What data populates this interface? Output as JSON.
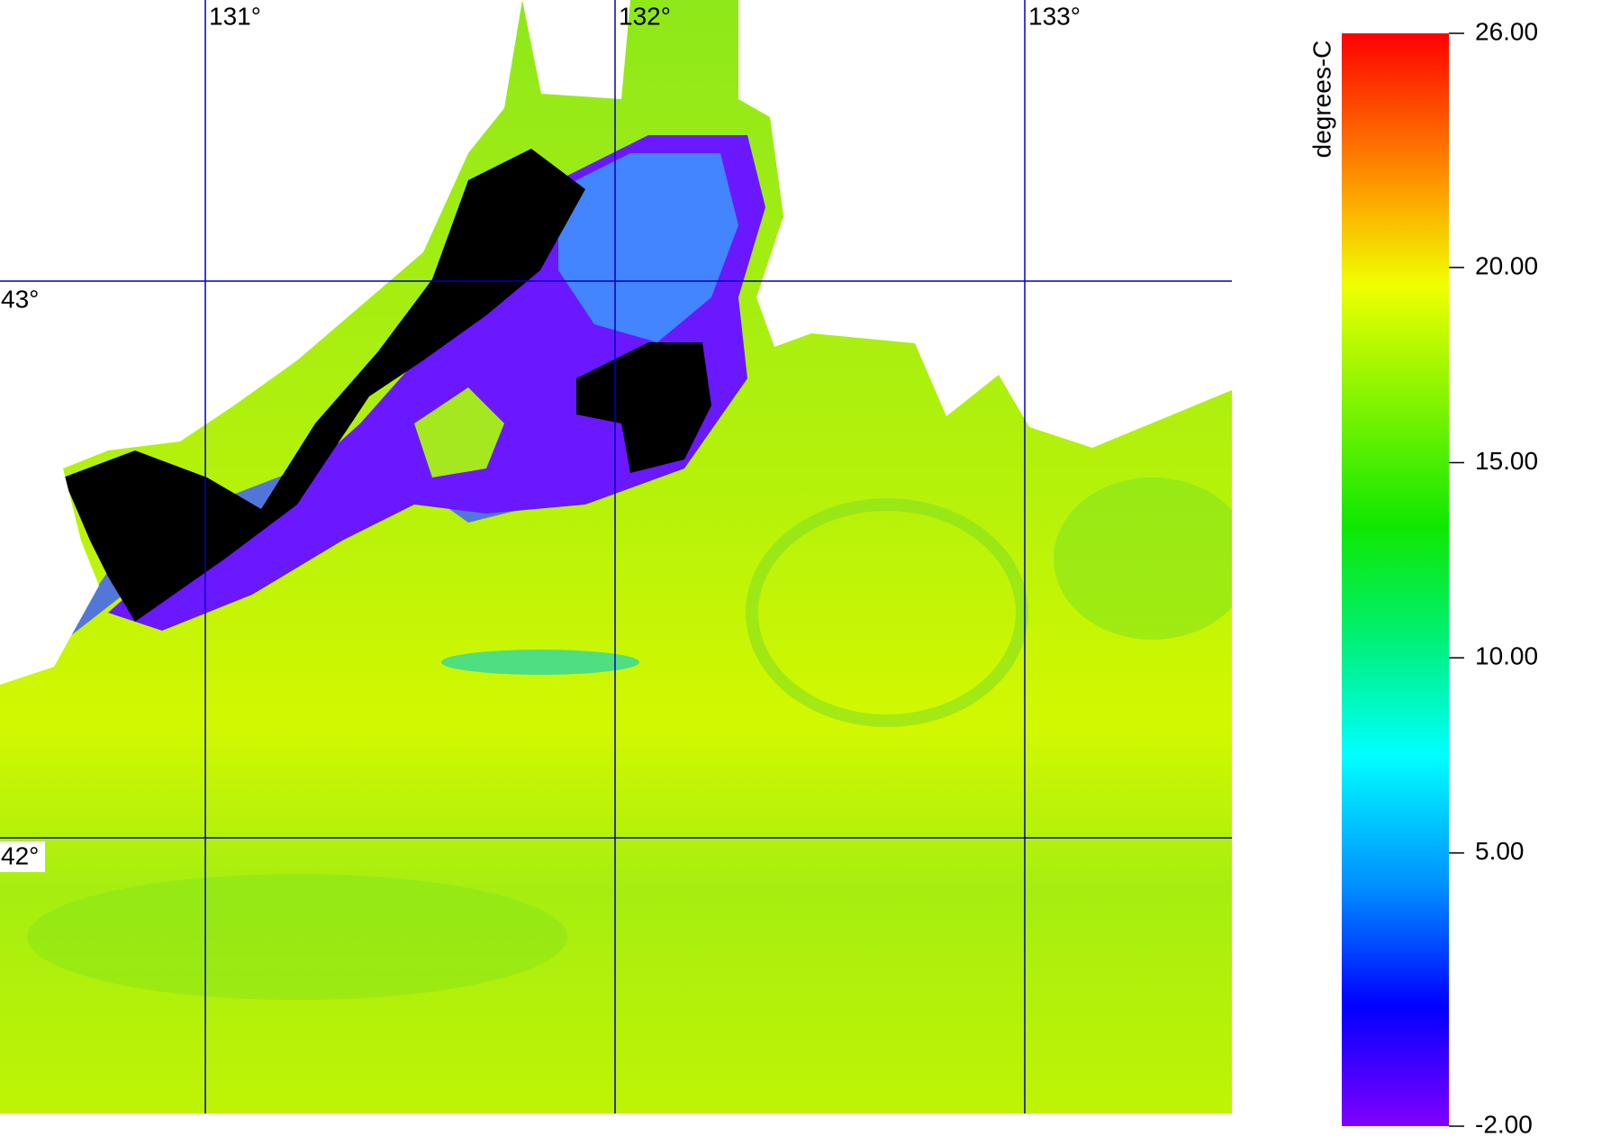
{
  "map": {
    "lon_labels": [
      "131°",
      "132°",
      "133°"
    ],
    "lat_labels": [
      "43°",
      "42°"
    ]
  },
  "colorbar": {
    "label": "degrees-C",
    "ticks": [
      {
        "value": 26,
        "label": "26.00"
      },
      {
        "value": 20,
        "label": "20.00"
      },
      {
        "value": 15,
        "label": "15.00"
      },
      {
        "value": 10,
        "label": "10.00"
      },
      {
        "value": 5,
        "label": "5.00"
      },
      {
        "value": -2,
        "label": "-2.00"
      }
    ]
  }
}
